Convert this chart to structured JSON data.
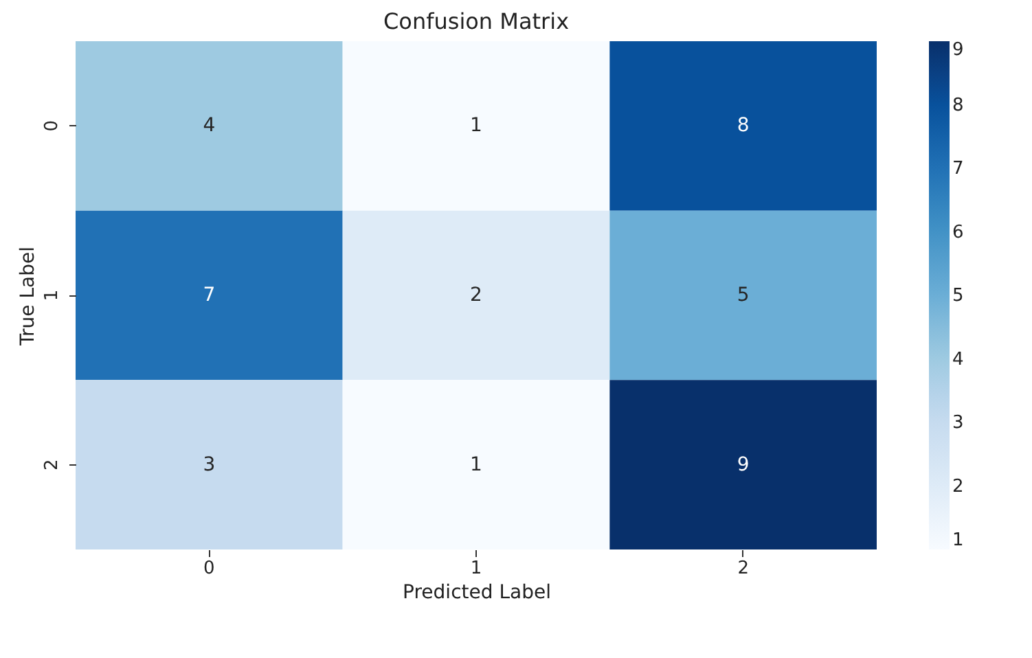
{
  "chart_data": {
    "type": "heatmap",
    "title": "Confusion Matrix",
    "xlabel": "Predicted Label",
    "ylabel": "True Label",
    "categories": [
      "0",
      "1",
      "2"
    ],
    "y_categories": [
      "0",
      "1",
      "2"
    ],
    "cells": [
      [
        4,
        1,
        8
      ],
      [
        7,
        2,
        5
      ],
      [
        3,
        1,
        9
      ]
    ],
    "clim": [
      1,
      9
    ],
    "cticks": [
      1,
      2,
      3,
      4,
      5,
      6,
      7,
      8,
      9
    ],
    "data_labels": true,
    "grid": false
  }
}
